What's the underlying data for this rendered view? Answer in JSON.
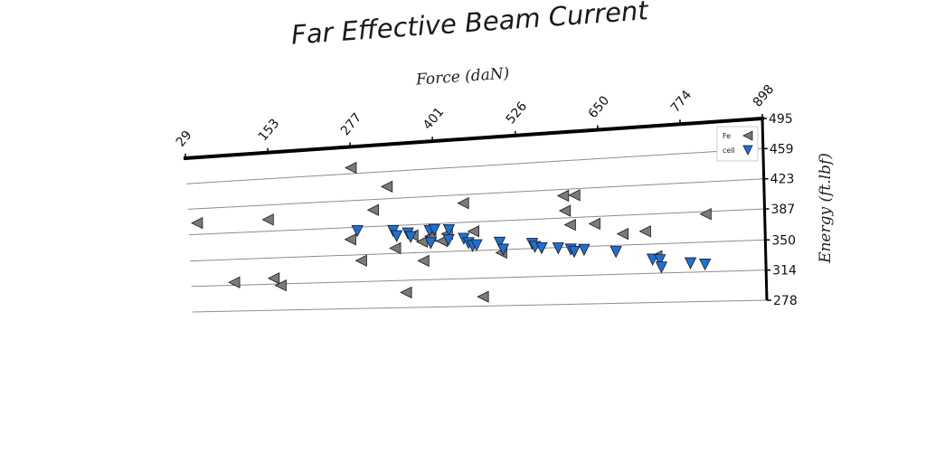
{
  "chart_data": {
    "type": "scatter",
    "title": "Far Effective Beam Current",
    "xlabel": "Force (daN)",
    "ylabel": "Energy (ft.lbf)",
    "xlim": [
      29,
      898
    ],
    "ylim": [
      278,
      495
    ],
    "x_ticks": [
      "29",
      "153",
      "277",
      "401",
      "526",
      "650",
      "774",
      "898"
    ],
    "y_ticks": [
      "278",
      "314",
      "350",
      "387",
      "423",
      "459",
      "495"
    ],
    "x_axis_position": "top",
    "y_axis_position": "right",
    "grid": "horizontal",
    "legend_position": "top-right",
    "series": [
      {
        "name": "Fe",
        "marker": "triangle-left",
        "color": "#7a7a7a",
        "points": [
          [
            277,
            467
          ],
          [
            330,
            439
          ],
          [
            42,
            403
          ],
          [
            149,
            403
          ],
          [
            308,
            409
          ],
          [
            444,
            412
          ],
          [
            595,
            415
          ],
          [
            612,
            415
          ],
          [
            597,
            396
          ],
          [
            604,
            378
          ],
          [
            641,
            378
          ],
          [
            809,
            384
          ],
          [
            272,
            371
          ],
          [
            366,
            373
          ],
          [
            393,
            371
          ],
          [
            418,
            373
          ],
          [
            458,
            375
          ],
          [
            410,
            364
          ],
          [
            339,
            357
          ],
          [
            380,
            364
          ],
          [
            683,
            364
          ],
          [
            717,
            366
          ],
          [
            287,
            342
          ],
          [
            381,
            339
          ],
          [
            499,
            346
          ],
          [
            733,
            335
          ],
          [
            94,
            318
          ],
          [
            154,
            322
          ],
          [
            164,
            312
          ],
          [
            353,
            298
          ],
          [
            469,
            290
          ]
        ]
      },
      {
        "name": "cell",
        "marker": "triangle-down",
        "color": "#1f6fd6",
        "points": [
          [
            283,
            382
          ],
          [
            337,
            380
          ],
          [
            342,
            373
          ],
          [
            359,
            376
          ],
          [
            363,
            371
          ],
          [
            392,
            378
          ],
          [
            399,
            379
          ],
          [
            393,
            362
          ],
          [
            421,
            378
          ],
          [
            420,
            365
          ],
          [
            443,
            366
          ],
          [
            450,
            360
          ],
          [
            456,
            356
          ],
          [
            462,
            357
          ],
          [
            497,
            359
          ],
          [
            502,
            350
          ],
          [
            546,
            356
          ],
          [
            550,
            352
          ],
          [
            560,
            350
          ],
          [
            585,
            349
          ],
          [
            604,
            347
          ],
          [
            609,
            344
          ],
          [
            624,
            346
          ],
          [
            672,
            342
          ],
          [
            727,
            331
          ],
          [
            738,
            330
          ],
          [
            740,
            321
          ],
          [
            784,
            325
          ],
          [
            806,
            323
          ]
        ]
      }
    ]
  }
}
